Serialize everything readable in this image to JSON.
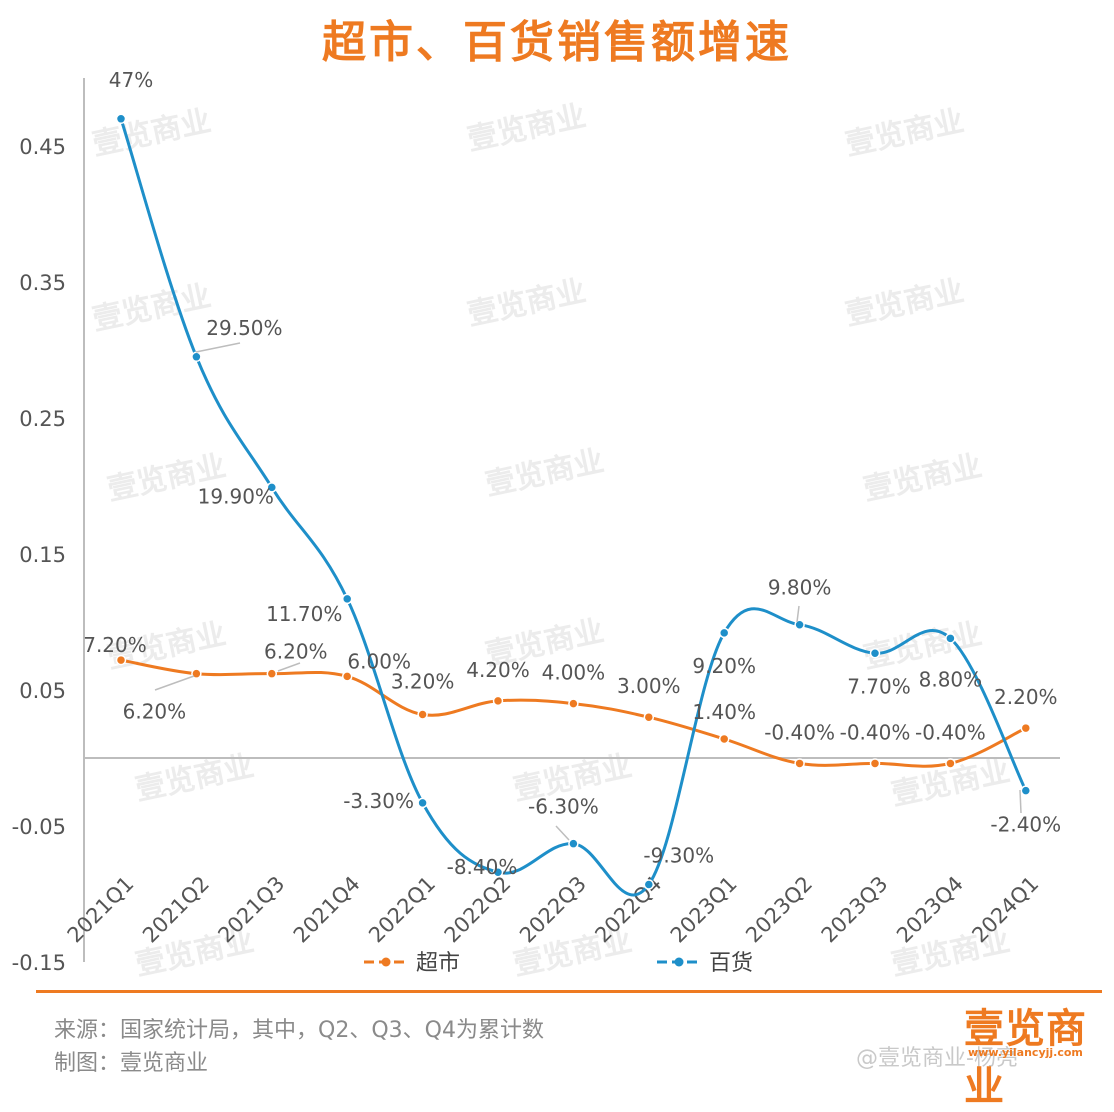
{
  "colors": {
    "title": "#EE7A21",
    "supermarket": "#EE7A21",
    "department_store": "#1E8FC9",
    "axis": "#BDBDBD",
    "label": "#555555",
    "footer_line": "#EE7A21",
    "watermark": "#ECECEC"
  },
  "watermark_text": "壹览商业",
  "chart_data": {
    "type": "line",
    "title": "超市、百货销售额增速",
    "categories": [
      "2021Q1",
      "2021Q2",
      "2021Q3",
      "2021Q4",
      "2022Q1",
      "2022Q2",
      "2022Q3",
      "2022Q4",
      "2023Q1",
      "2023Q2",
      "2023Q3",
      "2023Q4",
      "2024Q1"
    ],
    "ylim": [
      -0.15,
      0.5
    ],
    "yticks": [
      -0.15,
      -0.05,
      0.05,
      0.15,
      0.25,
      0.35,
      0.45
    ],
    "ytick_labels": [
      "-0.15",
      "-0.05",
      "0.05",
      "0.15",
      "0.25",
      "0.35",
      "0.45"
    ],
    "grid": false,
    "legend_position": "bottom",
    "series": [
      {
        "name": "超市",
        "values": [
          0.072,
          0.062,
          0.062,
          0.06,
          0.032,
          0.042,
          0.04,
          0.03,
          0.014,
          -0.004,
          -0.004,
          -0.004,
          0.022
        ],
        "labels": [
          "7.20%",
          "6.20%",
          "6.20%",
          "6.00%",
          "3.20%",
          "4.20%",
          "4.00%",
          "3.00%",
          "1.40%",
          "-0.40%",
          "-0.40%",
          "-0.40%",
          "2.20%"
        ]
      },
      {
        "name": "百货",
        "values": [
          0.47,
          0.295,
          0.199,
          0.117,
          -0.033,
          -0.084,
          -0.063,
          -0.093,
          0.092,
          0.098,
          0.077,
          0.088,
          -0.024
        ],
        "labels": [
          "47%",
          "29.50%",
          "19.90%",
          "11.70%",
          "-3.30%",
          "-8.40%",
          "-6.30%",
          "-9.30%",
          "9.20%",
          "9.80%",
          "7.70%",
          "8.80%",
          "-2.40%"
        ]
      }
    ]
  },
  "footer": {
    "source": "来源：国家统计局，其中，Q2、Q3、Q4为累计数",
    "made_by": "制图：壹览商业",
    "brand_logo": "壹览商业",
    "brand_url": "www.yilancyjj.com",
    "weibo_mark": "@壹览商业-杨亮"
  }
}
